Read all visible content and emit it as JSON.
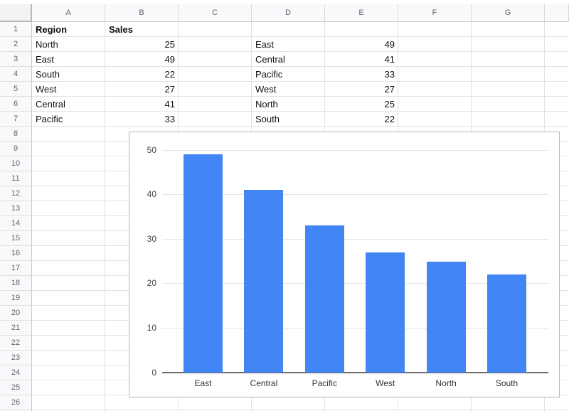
{
  "sheet": {
    "column_headers": [
      "A",
      "B",
      "C",
      "D",
      "E",
      "F",
      "G"
    ],
    "row_count": 26,
    "cells": [
      {
        "ref": "A1",
        "col": 0,
        "row": 1,
        "text": "Region",
        "bold": true,
        "align": "left"
      },
      {
        "ref": "B1",
        "col": 1,
        "row": 1,
        "text": "Sales",
        "bold": true,
        "align": "left"
      },
      {
        "ref": "A2",
        "col": 0,
        "row": 2,
        "text": "North",
        "align": "left"
      },
      {
        "ref": "B2",
        "col": 1,
        "row": 2,
        "text": "25",
        "align": "right"
      },
      {
        "ref": "A3",
        "col": 0,
        "row": 3,
        "text": "East",
        "align": "left"
      },
      {
        "ref": "B3",
        "col": 1,
        "row": 3,
        "text": "49",
        "align": "right"
      },
      {
        "ref": "A4",
        "col": 0,
        "row": 4,
        "text": "South",
        "align": "left"
      },
      {
        "ref": "B4",
        "col": 1,
        "row": 4,
        "text": "22",
        "align": "right"
      },
      {
        "ref": "A5",
        "col": 0,
        "row": 5,
        "text": "West",
        "align": "left"
      },
      {
        "ref": "B5",
        "col": 1,
        "row": 5,
        "text": "27",
        "align": "right"
      },
      {
        "ref": "A6",
        "col": 0,
        "row": 6,
        "text": "Central",
        "align": "left"
      },
      {
        "ref": "B6",
        "col": 1,
        "row": 6,
        "text": "41",
        "align": "right"
      },
      {
        "ref": "A7",
        "col": 0,
        "row": 7,
        "text": "Pacific",
        "align": "left"
      },
      {
        "ref": "B7",
        "col": 1,
        "row": 7,
        "text": "33",
        "align": "right"
      },
      {
        "ref": "D2",
        "col": 3,
        "row": 2,
        "text": "East",
        "align": "left"
      },
      {
        "ref": "E2",
        "col": 4,
        "row": 2,
        "text": "49",
        "align": "right"
      },
      {
        "ref": "D3",
        "col": 3,
        "row": 3,
        "text": "Central",
        "align": "left"
      },
      {
        "ref": "E3",
        "col": 4,
        "row": 3,
        "text": "41",
        "align": "right"
      },
      {
        "ref": "D4",
        "col": 3,
        "row": 4,
        "text": "Pacific",
        "align": "left"
      },
      {
        "ref": "E4",
        "col": 4,
        "row": 4,
        "text": "33",
        "align": "right"
      },
      {
        "ref": "D5",
        "col": 3,
        "row": 5,
        "text": "West",
        "align": "left"
      },
      {
        "ref": "E5",
        "col": 4,
        "row": 5,
        "text": "27",
        "align": "right"
      },
      {
        "ref": "D6",
        "col": 3,
        "row": 6,
        "text": "North",
        "align": "left"
      },
      {
        "ref": "E6",
        "col": 4,
        "row": 6,
        "text": "25",
        "align": "right"
      },
      {
        "ref": "D7",
        "col": 3,
        "row": 7,
        "text": "South",
        "align": "left"
      },
      {
        "ref": "E7",
        "col": 4,
        "row": 7,
        "text": "22",
        "align": "right"
      }
    ]
  },
  "chart_data": {
    "type": "bar",
    "categories": [
      "East",
      "Central",
      "Pacific",
      "West",
      "North",
      "South"
    ],
    "values": [
      49,
      41,
      33,
      27,
      25,
      22
    ],
    "title": "",
    "xlabel": "",
    "ylabel": "",
    "ylim": [
      0,
      50
    ],
    "yticks": [
      0,
      10,
      20,
      30,
      40,
      50
    ],
    "bar_color": "#4285f4",
    "legend": "none",
    "grid": true
  }
}
